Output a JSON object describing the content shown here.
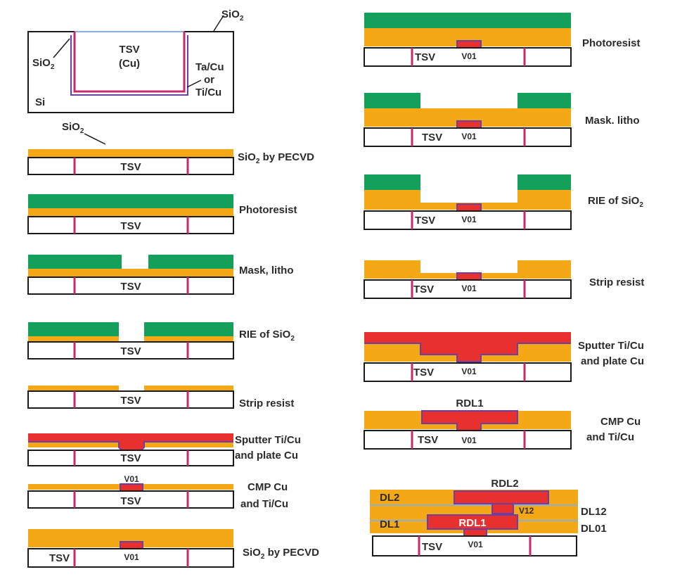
{
  "colors": {
    "oxide": "#f5a816",
    "resist": "#13a05a",
    "copper": "#e8302f",
    "liner": "#6a3fa6",
    "tsv_liner": "#c8286a",
    "wafer_outline": "#1a1a1a",
    "top_edge": "#8ab0d8",
    "text": "#2b2b2b"
  },
  "detail": {
    "sio2_top": "SiO",
    "sio2_side": "SiO",
    "sub2": "2",
    "tsv": "TSV",
    "cu": "(Cu)",
    "liner_opts": [
      "Ta/Cu",
      "or",
      "Ti/Cu"
    ],
    "si": "Si"
  },
  "sio2_pointer": {
    "text": "SiO",
    "sub": "2"
  },
  "left_steps": {
    "s1": {
      "label": "SiO",
      "sub": "2",
      "label_rest": " by PECVD",
      "tsv": "TSV"
    },
    "s2": {
      "label": "Photoresist",
      "tsv": "TSV"
    },
    "s3": {
      "label": "Mask, litho",
      "tsv": "TSV"
    },
    "s4": {
      "label": "RIE of SiO",
      "sub": "2",
      "tsv": "TSV"
    },
    "s5": {
      "label": "Strip resist",
      "tsv": "TSV"
    },
    "s6": {
      "label_lines": [
        "Sputter Ti/Cu",
        "and plate Cu"
      ],
      "tsv": "TSV"
    },
    "s7": {
      "label_lines": [
        "CMP Cu",
        "and Ti/Cu"
      ],
      "tsv": "TSV",
      "via": "V01"
    },
    "s8": {
      "label": "SiO",
      "sub": "2",
      "label_rest": " by PECVD",
      "tsv": "TSV",
      "via": "V01"
    }
  },
  "right_steps": {
    "r1": {
      "label": "Photoresist",
      "tsv": "TSV",
      "via": "V01"
    },
    "r2": {
      "label": "Mask. litho",
      "tsv": "TSV",
      "via": "V01"
    },
    "r3": {
      "label": "RIE of SiO",
      "sub": "2",
      "tsv": "TSV",
      "via": "V01"
    },
    "r4": {
      "label": "Strip resist",
      "tsv": "TSV",
      "via": "V01"
    },
    "r5": {
      "label_lines": [
        "Sputter Ti/Cu",
        "and plate Cu"
      ],
      "tsv": "TSV",
      "via": "V01"
    },
    "r6": {
      "label_lines": [
        "CMP Cu",
        "and Ti/Cu"
      ],
      "tsv": "TSV",
      "via": "V01",
      "rdl": "RDL1"
    },
    "r7": {
      "dl2": "DL2",
      "dl1": "DL1",
      "dl12": "DL12",
      "dl01": "DL01",
      "rdl2": "RDL2",
      "rdl1": "RDL1",
      "v12": "V12",
      "tsv": "TSV",
      "via": "V01"
    }
  }
}
